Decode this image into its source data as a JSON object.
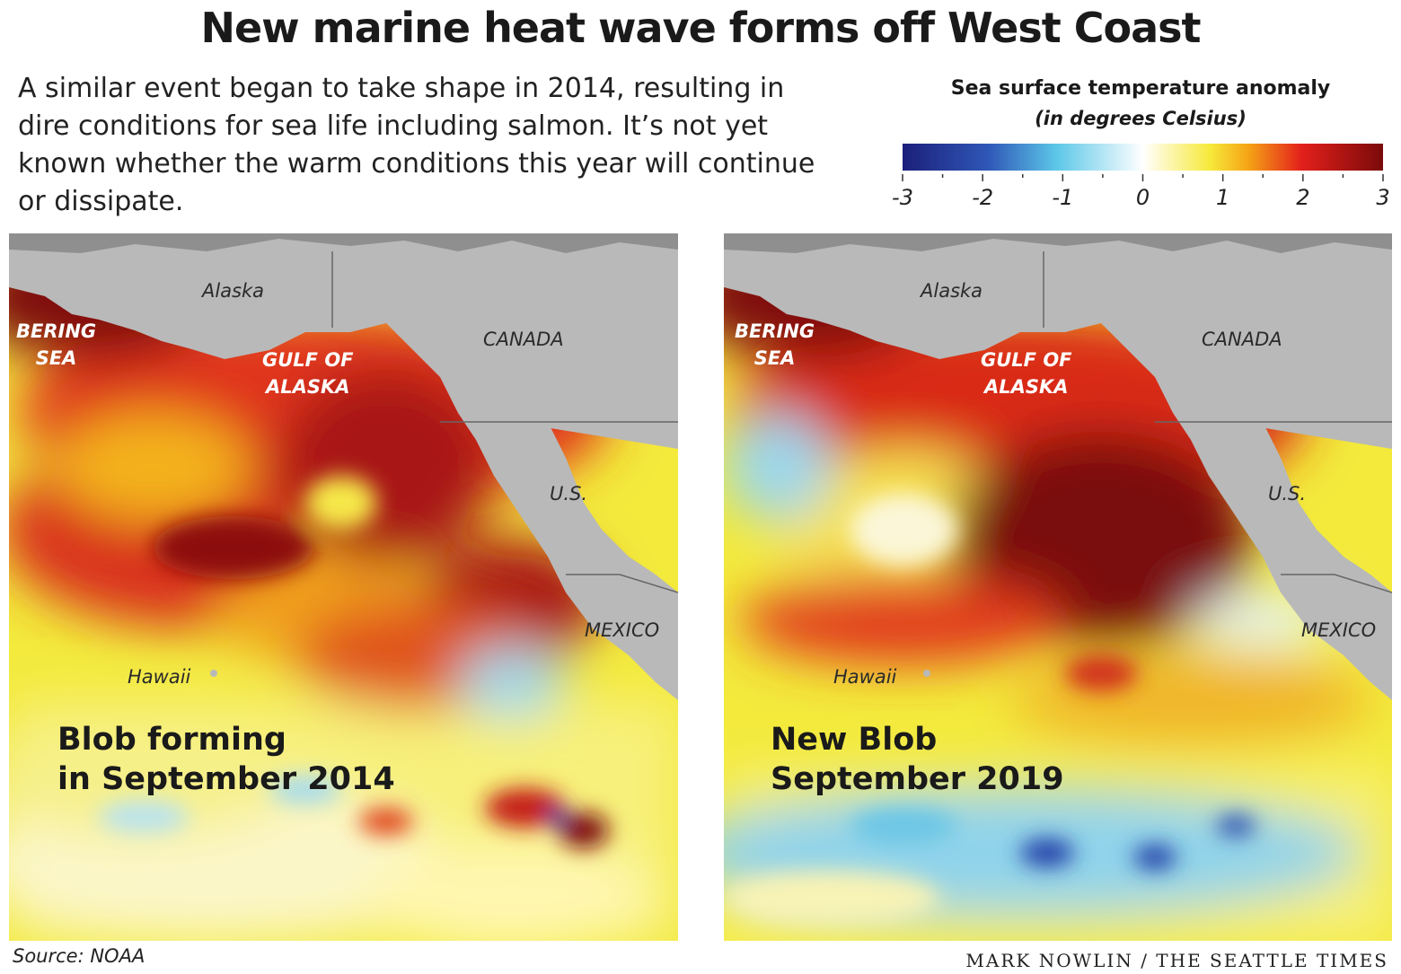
{
  "headline": "New marine heat wave forms off West Coast",
  "dek": "A similar event began to take shape in 2014, resulting in dire conditions for sea life including salmon. It’s not yet known whether the warm conditions this year will continue or dissipate.",
  "legend": {
    "title": "Sea surface temperature anomaly",
    "subtitle": "(in degrees Celsius)",
    "ticks": [
      "-3",
      "-2",
      "-1",
      "0",
      "1",
      "2",
      "3"
    ],
    "range": [
      -3,
      3
    ],
    "colors": [
      "#1b1f7a",
      "#2f58b8",
      "#5cc7e8",
      "#ffffff",
      "#f7e93a",
      "#f5a316",
      "#e3201b",
      "#7a0a0a"
    ]
  },
  "maps": [
    {
      "labels": {
        "alaska": "Alaska",
        "canada": "CANADA",
        "us": "U.S.",
        "mexico": "MEXICO",
        "hawaii": "Hawaii",
        "bering": "BERING\nSEA",
        "gulf": "GULF OF\nALASKA"
      },
      "caption": "Blob forming\nin September 2014"
    },
    {
      "labels": {
        "alaska": "Alaska",
        "canada": "CANADA",
        "us": "U.S.",
        "mexico": "MEXICO",
        "hawaii": "Hawaii",
        "bering": "BERING\nSEA",
        "gulf": "GULF OF\nALASKA"
      },
      "caption": "New Blob\nSeptember 2019"
    }
  ],
  "source": "Source: NOAA",
  "credit": "MARK NOWLIN / THE SEATTLE TIMES"
}
